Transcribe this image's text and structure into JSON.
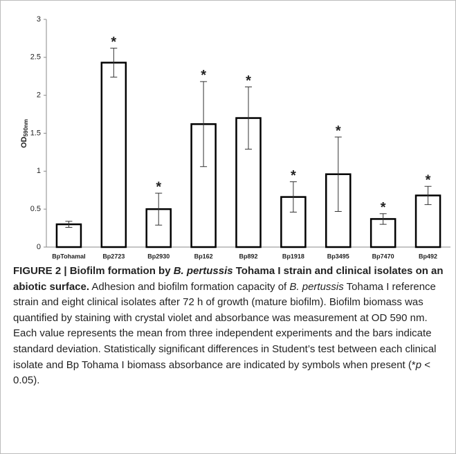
{
  "chart_data": {
    "type": "bar",
    "y_label": "OD",
    "y_label_sub": "590nm",
    "categories": [
      "BpTohamaI",
      "Bp2723",
      "Bp2930",
      "Bp162",
      "Bp892",
      "Bp1918",
      "Bp3495",
      "Bp7470",
      "Bp492"
    ],
    "values": [
      0.3,
      2.43,
      0.5,
      1.62,
      1.7,
      0.66,
      0.96,
      0.37,
      0.68
    ],
    "errors": [
      0.04,
      0.19,
      0.21,
      0.56,
      0.41,
      0.2,
      0.49,
      0.07,
      0.12
    ],
    "annotations": [
      null,
      "*",
      "*",
      "*",
      "*",
      "*",
      "*",
      "*",
      "*"
    ],
    "color": "#ffffff",
    "edge_color": "#000000",
    "ylim": [
      0,
      3
    ],
    "yticks": [
      0,
      0.5,
      1,
      1.5,
      2,
      2.5,
      3
    ],
    "grid": false
  },
  "caption": {
    "segments": [
      {
        "text": "FIGURE 2 | Biofilm formation by ",
        "bold": true,
        "italic": false
      },
      {
        "text": "B. pertussis",
        "bold": true,
        "italic": true
      },
      {
        "text": " Tohama I strain and clinical isolates on an abiotic surface.",
        "bold": true,
        "italic": false
      },
      {
        "text": " Adhesion and biofilm formation capacity of ",
        "bold": false,
        "italic": false
      },
      {
        "text": "B. pertussis",
        "bold": false,
        "italic": true
      },
      {
        "text": " Tohama I reference strain and eight clinical isolates after 72 h of growth (mature biofilm). Biofilm biomass was quantified by staining with crystal violet and absorbance was measurement at OD 590 nm. Each value represents the mean from three independent experiments and the bars indicate standard deviation. Statistically significant differences in Student’s test between each clinical isolate and Bp Tohama I biomass absorbance are indicated by symbols when present (*",
        "bold": false,
        "italic": false
      },
      {
        "text": "p",
        "bold": false,
        "italic": true
      },
      {
        "text": " < 0.05).",
        "bold": false,
        "italic": false
      }
    ]
  }
}
